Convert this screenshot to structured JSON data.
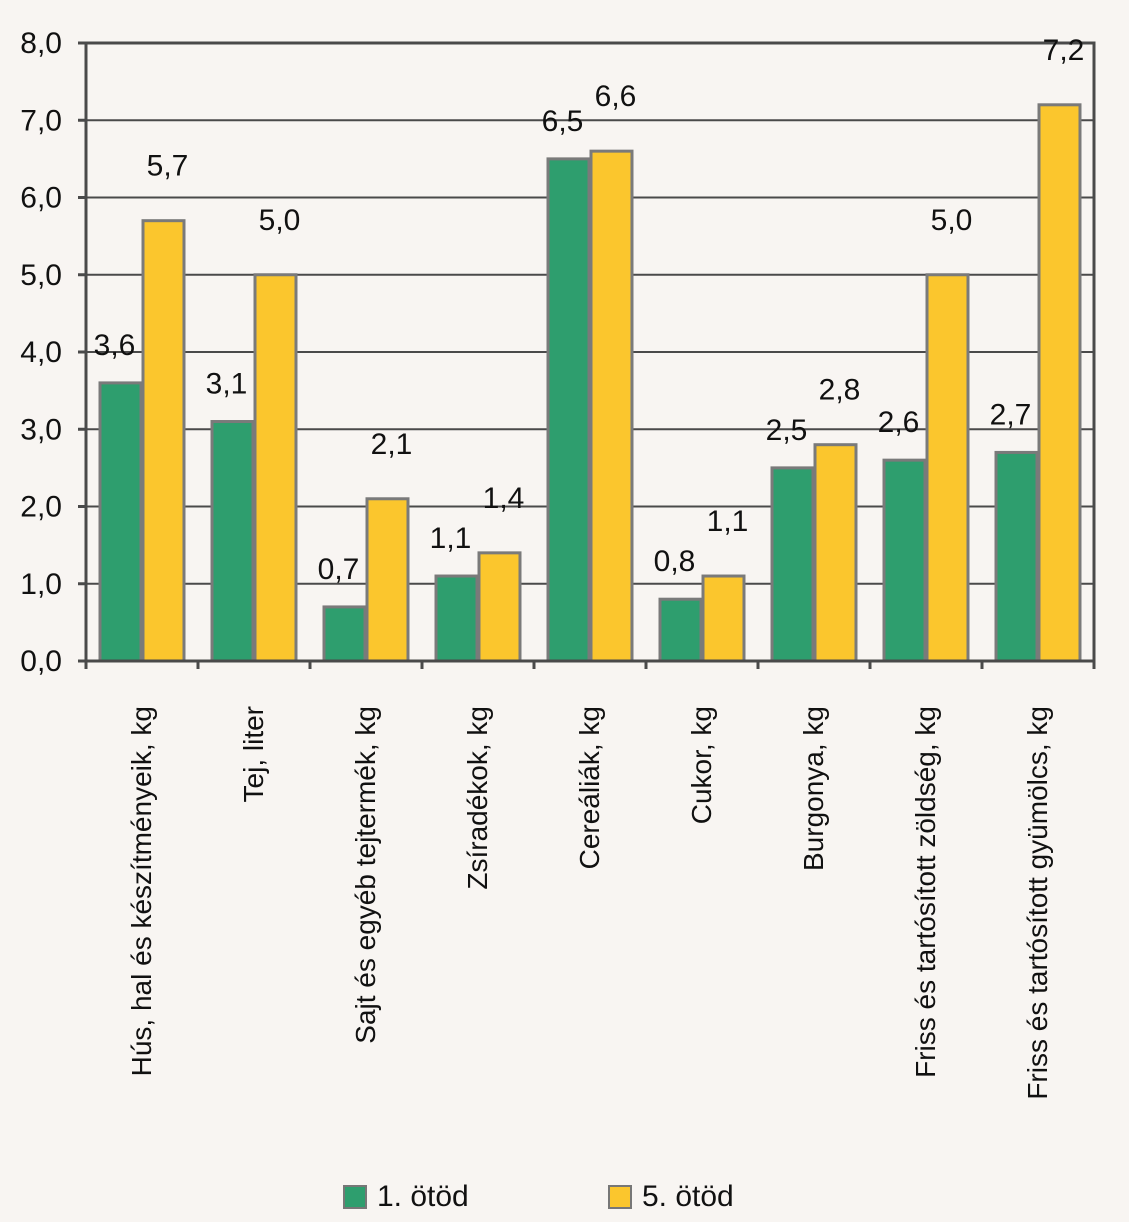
{
  "chart_data": {
    "type": "bar",
    "title": "",
    "xlabel": "",
    "ylabel": "",
    "ylim": [
      0,
      8
    ],
    "yticks": [
      "0,0",
      "1,0",
      "2,0",
      "3,0",
      "4,0",
      "5,0",
      "6,0",
      "7,0",
      "8,0"
    ],
    "grid": true,
    "legend_position": "bottom",
    "categories": [
      "Hús, hal és készítményeik, kg",
      "Tej, liter",
      "Sajt és egyéb tejtermék, kg",
      "Zsíradékok, kg",
      "Cereáliák, kg",
      "Cukor, kg",
      "Burgonya, kg",
      "Friss és tartósított zöldség, kg",
      "Friss és tartósított gyümölcs, kg"
    ],
    "series": [
      {
        "name": "1. ötöd",
        "color": "#2e9e6e",
        "values": [
          3.6,
          3.1,
          0.7,
          1.1,
          6.5,
          0.8,
          2.5,
          2.6,
          2.7
        ],
        "labels": [
          "3,6",
          "3,1",
          "0,7",
          "1,1",
          "6,5",
          "0,8",
          "2,5",
          "2,6",
          "2,7"
        ]
      },
      {
        "name": "5. ötöd",
        "color": "#fbc62d",
        "values": [
          5.7,
          5.0,
          2.1,
          1.4,
          6.6,
          1.1,
          2.8,
          5.0,
          7.2
        ],
        "labels": [
          "5,7",
          "5,0",
          "2,1",
          "1,4",
          "6,6",
          "1,1",
          "2,8",
          "5,0",
          "7,2"
        ]
      }
    ]
  }
}
